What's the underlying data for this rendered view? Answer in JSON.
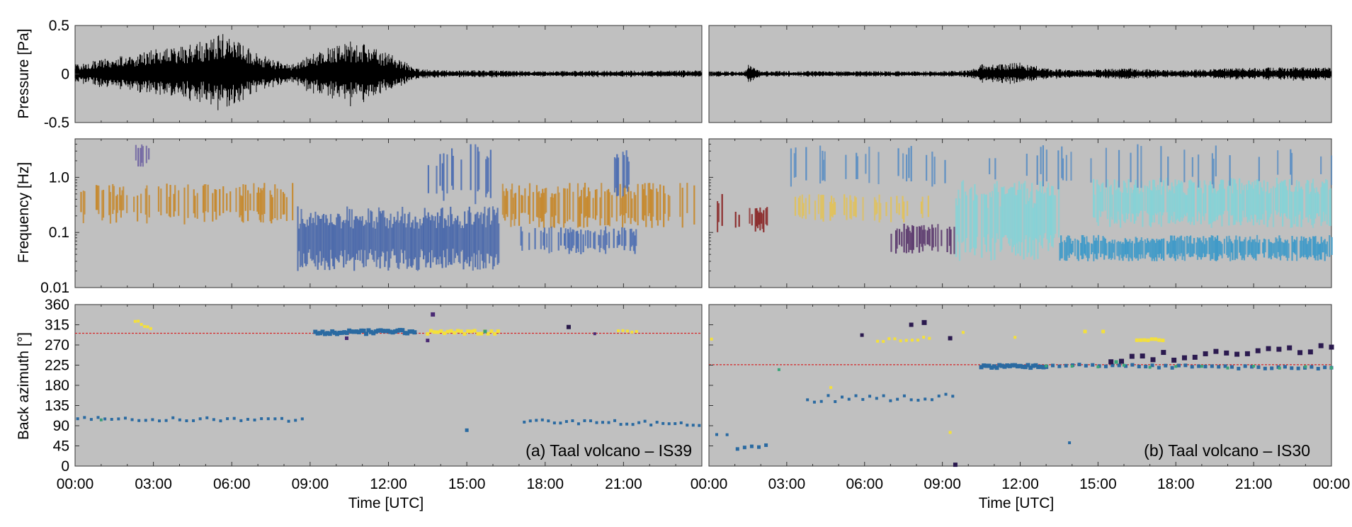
{
  "figure": {
    "x_label": "Time [UTC]",
    "row_ylabels": [
      "Pressure [Pa]",
      "Frequency [Hz]",
      "Back azimuth [°]"
    ],
    "background": "#c0c0c0",
    "waveform_color": "#000000",
    "reference_line_color": "#d62728"
  },
  "chart_data": [
    {
      "type": "line",
      "panel": "a",
      "row": "pressure",
      "ylabel": "Pressure [Pa]",
      "ylim": [
        -0.5,
        0.5
      ],
      "yticks": [
        "0.5",
        "0",
        "-0.5"
      ],
      "xlim_hours": [
        0,
        24
      ],
      "envelope": {
        "t_hours": [
          0,
          1,
          2,
          3,
          4,
          5,
          5.8,
          6.5,
          7.5,
          8.3,
          9,
          10,
          10.5,
          11.5,
          12.5,
          13,
          14,
          16,
          18,
          20,
          22,
          24
        ],
        "amp_pa": [
          0.1,
          0.15,
          0.2,
          0.25,
          0.3,
          0.35,
          0.45,
          0.3,
          0.15,
          0.1,
          0.2,
          0.3,
          0.35,
          0.28,
          0.15,
          0.06,
          0.04,
          0.04,
          0.03,
          0.035,
          0.035,
          0.04
        ]
      }
    },
    {
      "type": "line",
      "panel": "b",
      "row": "pressure",
      "ylim": [
        -0.5,
        0.5
      ],
      "xlim_hours": [
        0,
        24
      ],
      "envelope": {
        "t_hours": [
          0,
          1.4,
          1.5,
          2,
          5,
          9,
          10,
          10.5,
          12,
          13,
          14,
          16,
          18,
          20,
          22,
          24
        ],
        "amp_pa": [
          0.03,
          0.03,
          0.1,
          0.03,
          0.03,
          0.03,
          0.04,
          0.1,
          0.12,
          0.06,
          0.04,
          0.06,
          0.04,
          0.06,
          0.07,
          0.07
        ]
      }
    },
    {
      "type": "heatmap",
      "panel": "a",
      "row": "frequency",
      "ylabel": "Frequency [Hz]",
      "yscale": "log",
      "ylim": [
        0.01,
        5
      ],
      "yticks": [
        "1.0",
        "0.1",
        "0.01"
      ],
      "xlim_hours": [
        0,
        24
      ],
      "segments": [
        {
          "start": 0.2,
          "end": 8.3,
          "fmin": 0.14,
          "fmax": 0.8,
          "color": "#c6892e",
          "density": 0.45
        },
        {
          "start": 8.5,
          "end": 16.2,
          "fmin": 0.02,
          "fmax": 0.3,
          "color": "#4c6aab",
          "density": 1.0
        },
        {
          "start": 13.5,
          "end": 16.2,
          "fmin": 0.3,
          "fmax": 4,
          "color": "#4d6eb2",
          "density": 0.3
        },
        {
          "start": 16.3,
          "end": 23.8,
          "fmin": 0.12,
          "fmax": 0.8,
          "color": "#c6892e",
          "density": 0.45
        },
        {
          "start": 17,
          "end": 21.5,
          "fmin": 0.04,
          "fmax": 0.13,
          "color": "#4d6eb2",
          "density": 0.5
        },
        {
          "start": 2.3,
          "end": 2.8,
          "fmin": 1.5,
          "fmax": 4,
          "color": "#6b5fa0",
          "density": 0.6
        },
        {
          "start": 20.5,
          "end": 21.2,
          "fmin": 0.4,
          "fmax": 4,
          "color": "#4d6eb2",
          "density": 0.4
        }
      ]
    },
    {
      "type": "heatmap",
      "panel": "b",
      "row": "frequency",
      "yscale": "log",
      "ylim": [
        0.01,
        5
      ],
      "xlim_hours": [
        0,
        24
      ],
      "segments": [
        {
          "start": 0.3,
          "end": 0.7,
          "fmin": 0.1,
          "fmax": 0.5,
          "color": "#8b2c2c",
          "density": 0.6
        },
        {
          "start": 1.0,
          "end": 2.3,
          "fmin": 0.1,
          "fmax": 0.3,
          "color": "#8b2c2c",
          "density": 0.7
        },
        {
          "start": 3.3,
          "end": 8.5,
          "fmin": 0.15,
          "fmax": 0.5,
          "color": "#e1c15a",
          "density": 0.45
        },
        {
          "start": 7.0,
          "end": 9.5,
          "fmin": 0.04,
          "fmax": 0.15,
          "color": "#5c3a6e",
          "density": 0.5
        },
        {
          "start": 9.5,
          "end": 13.5,
          "fmin": 0.03,
          "fmax": 0.9,
          "color": "#86d2d6",
          "density": 0.85
        },
        {
          "start": 13.5,
          "end": 24,
          "fmin": 0.03,
          "fmax": 0.09,
          "color": "#3f9ac8",
          "density": 0.9
        },
        {
          "start": 14.8,
          "end": 24,
          "fmin": 0.12,
          "fmax": 1.0,
          "color": "#86d2d6",
          "density": 0.85
        },
        {
          "start": 3.0,
          "end": 24,
          "fmin": 0.6,
          "fmax": 4,
          "color": "#5b8ec3",
          "density": 0.12
        }
      ]
    },
    {
      "type": "scatter",
      "panel": "a",
      "row": "backazimuth",
      "ylabel": "Back azimuth [°]",
      "ylim": [
        0,
        360
      ],
      "yticks": [
        "360",
        "315",
        "270",
        "225",
        "180",
        "135",
        "90",
        "45",
        "0"
      ],
      "xlim_hours": [
        0,
        24
      ],
      "xticks": [
        "00:00",
        "03:00",
        "06:00",
        "09:00",
        "12:00",
        "15:00",
        "18:00",
        "21:00"
      ],
      "reference_azimuth": 296,
      "panel_label": "(a) Taal volcano – IS39",
      "groups": [
        {
          "t_start": 0.1,
          "t_end": 8.7,
          "az_start": 105,
          "az_end": 103,
          "jitter": 4,
          "count": 34,
          "color": "#2a6aa1",
          "size": 4
        },
        {
          "t_start": 9.2,
          "t_end": 13.0,
          "az_start": 297,
          "az_end": 300,
          "jitter": 4,
          "count": 42,
          "color": "#2a6aa1",
          "size": 6
        },
        {
          "t_start": 13.5,
          "t_end": 16.2,
          "az_start": 298,
          "az_end": 298,
          "jitter": 4,
          "count": 22,
          "color": "#f4e03b",
          "size": 5
        },
        {
          "t_start": 17.2,
          "t_end": 23.9,
          "az_start": 100,
          "az_end": 95,
          "jitter": 5,
          "count": 30,
          "color": "#2a6aa1",
          "size": 4
        },
        {
          "t_start": 2.3,
          "t_end": 2.9,
          "az_start": 325,
          "az_end": 305,
          "jitter": 3,
          "count": 6,
          "color": "#f4e03b",
          "size": 4
        },
        {
          "t_start": 20.8,
          "t_end": 21.5,
          "az_start": 300,
          "az_end": 300,
          "jitter": 2,
          "count": 5,
          "color": "#f4e03b",
          "size": 4
        }
      ],
      "points": [
        [
          13.7,
          338,
          "#4a2a74",
          6
        ],
        [
          13.5,
          280,
          "#4a2a74",
          5
        ],
        [
          18.9,
          310,
          "#2a1a4a",
          6
        ],
        [
          10.4,
          285,
          "#4a2a74",
          5
        ],
        [
          15.0,
          80,
          "#2a6aa1",
          5
        ],
        [
          1.0,
          103,
          "#3a9c7a",
          4
        ],
        [
          15.7,
          300,
          "#3a9c7a",
          5
        ],
        [
          19.9,
          295,
          "#4a2a74",
          4
        ]
      ]
    },
    {
      "type": "scatter",
      "panel": "b",
      "row": "backazimuth",
      "ylim": [
        0,
        360
      ],
      "xlim_hours": [
        0,
        24
      ],
      "xticks": [
        "00:00",
        "03:00",
        "06:00",
        "09:00",
        "12:00",
        "15:00",
        "18:00",
        "21:00",
        "00:00"
      ],
      "reference_azimuth": 226,
      "panel_label": "(b) Taal volcano – IS30",
      "groups": [
        {
          "t_start": 0.3,
          "t_end": 0.7,
          "az_start": 70,
          "az_end": 70,
          "jitter": 2,
          "count": 2,
          "color": "#2a6aa1",
          "size": 4
        },
        {
          "t_start": 1.1,
          "t_end": 2.2,
          "az_start": 40,
          "az_end": 45,
          "jitter": 2,
          "count": 5,
          "color": "#2a6aa1",
          "size": 5
        },
        {
          "t_start": 3.8,
          "t_end": 9.4,
          "az_start": 150,
          "az_end": 155,
          "jitter": 8,
          "count": 22,
          "color": "#2a6aa1",
          "size": 4
        },
        {
          "t_start": 10.5,
          "t_end": 13.0,
          "az_start": 222,
          "az_end": 222,
          "jitter": 3,
          "count": 26,
          "color": "#2a6aa1",
          "size": 6
        },
        {
          "t_start": 13.0,
          "t_end": 24,
          "az_start": 225,
          "az_end": 218,
          "jitter": 3,
          "count": 44,
          "color": "#2a6aa1",
          "size": 5
        },
        {
          "t_start": 15.5,
          "t_end": 24,
          "az_start": 240,
          "az_end": 260,
          "jitter": 10,
          "count": 22,
          "color": "#2b1a4f",
          "size": 7
        },
        {
          "t_start": 6.5,
          "t_end": 8.5,
          "az_start": 280,
          "az_end": 285,
          "jitter": 4,
          "count": 10,
          "color": "#f4e03b",
          "size": 4
        },
        {
          "t_start": 16.5,
          "t_end": 17.5,
          "az_start": 282,
          "az_end": 282,
          "jitter": 2,
          "count": 8,
          "color": "#f4e03b",
          "size": 5
        },
        {
          "t_start": 13.0,
          "t_end": 24,
          "az_start": 224,
          "az_end": 220,
          "jitter": 3,
          "count": 12,
          "color": "#3aa67a",
          "size": 4
        }
      ],
      "points": [
        [
          8.3,
          320,
          "#2b1a4f",
          7
        ],
        [
          7.8,
          315,
          "#2b1a4f",
          6
        ],
        [
          5.9,
          292,
          "#2b1a4f",
          5
        ],
        [
          9.3,
          285,
          "#2b1a4f",
          6
        ],
        [
          9.5,
          3,
          "#2b1a4f",
          6
        ],
        [
          9.3,
          75,
          "#f4e03b",
          4
        ],
        [
          4.7,
          175,
          "#f4e03b",
          4
        ],
        [
          13.9,
          52,
          "#2a6aa1",
          4
        ],
        [
          15.7,
          232,
          "#3aa67a",
          5
        ],
        [
          0.1,
          283,
          "#f4e03b",
          4
        ],
        [
          2.7,
          215,
          "#3aa67a",
          4
        ],
        [
          15.2,
          300,
          "#f4e03b",
          5
        ],
        [
          14.5,
          300,
          "#f4e03b",
          5
        ],
        [
          11.8,
          287,
          "#f4e03b",
          4
        ],
        [
          9.8,
          298,
          "#f4e03b",
          4
        ]
      ]
    }
  ]
}
